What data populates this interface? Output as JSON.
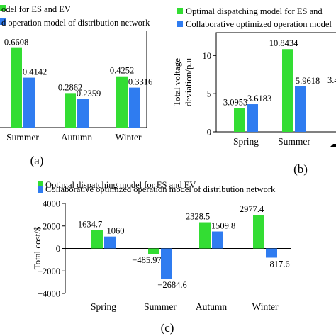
{
  "colors": {
    "green": "#33dd33",
    "blue": "#2f7cf0"
  },
  "chart_data": [
    {
      "panel": "(a)",
      "type": "bar",
      "legend": [
        "odel for ES and EV",
        "d operation model of distribution network"
      ],
      "categories": [
        "Summer",
        "Autumn",
        "Winter"
      ],
      "series": [
        {
          "values": [
            0.6608,
            0.2862,
            0.4252
          ]
        },
        {
          "values": [
            0.4142,
            0.2359,
            0.3316
          ]
        }
      ],
      "value_labels": [
        [
          "0.6608",
          "0.2862",
          "0.4252"
        ],
        [
          "0.4142",
          "0.2359",
          "0.3316"
        ]
      ],
      "ylim": [
        0,
        0.8
      ]
    },
    {
      "panel": "(b)",
      "type": "bar",
      "legend": [
        "Optimal dispatching model for ES and",
        "Collaborative optimized operation model"
      ],
      "ylabel_line1": "Total voltage",
      "ylabel_line2": "deviation/p.u",
      "categories": [
        "Spring",
        "Summer"
      ],
      "yticks": [
        "0",
        "5",
        "10"
      ],
      "series": [
        {
          "values": [
            3.0953,
            10.8434
          ]
        },
        {
          "values": [
            3.6183,
            5.9618
          ]
        }
      ],
      "value_labels": [
        [
          "3.0953",
          "10.8434"
        ],
        [
          "3.6183",
          "5.9618"
        ]
      ],
      "ylim": [
        0,
        13
      ],
      "edge_fragment": "3.4"
    },
    {
      "panel": "(c)",
      "type": "bar",
      "legend": [
        "Optimal dispatching model for ES and EV",
        "Collaborative optimized operation model of distribution network"
      ],
      "ylabel": "Total cost/$",
      "categories": [
        "Spring",
        "Summer",
        "Autumn",
        "Winter"
      ],
      "yticks": [
        "4000",
        "2000",
        "0",
        "−2000",
        "−4000"
      ],
      "series": [
        {
          "values": [
            1634.7,
            -485.97,
            2328.5,
            2977.4
          ]
        },
        {
          "values": [
            1060,
            -2684.6,
            1509.8,
            -817.6
          ]
        }
      ],
      "value_labels": [
        [
          "1634.7",
          "−485.97",
          "2328.5",
          "2977.4"
        ],
        [
          "1060",
          "−2684.6",
          "1509.8",
          "−817.6"
        ]
      ],
      "ylim": [
        -4000,
        4000
      ]
    }
  ]
}
